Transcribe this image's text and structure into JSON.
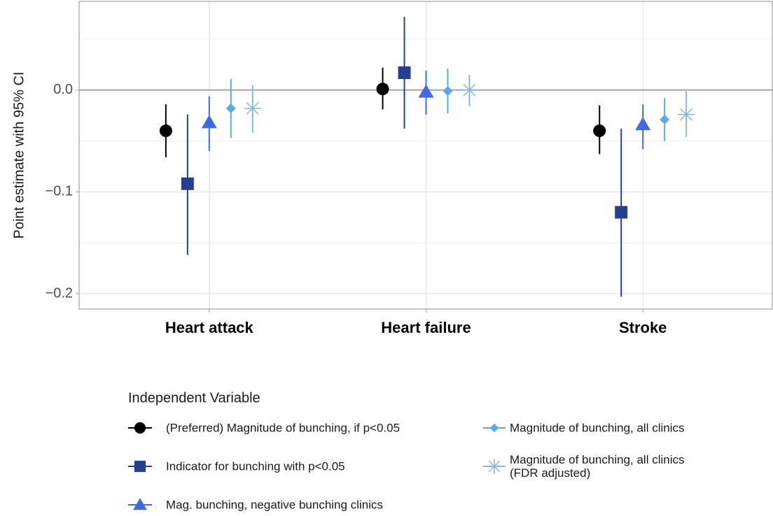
{
  "chart_data": {
    "type": "pointrange",
    "y_label": "Point estimate with 95% CI",
    "categories": [
      "Heart attack",
      "Heart failure",
      "Stroke"
    ],
    "ylim": [
      -0.215,
      0.087
    ],
    "yticks": [
      {
        "value": -0.2,
        "label": "−0.2"
      },
      {
        "value": -0.1,
        "label": "−0.1"
      },
      {
        "value": 0,
        "label": "0.0"
      }
    ],
    "yminor": [
      -0.15,
      -0.05,
      0.05
    ],
    "grid": true,
    "hline": 0,
    "legend_title": "Independent Variable",
    "series": [
      {
        "name": "(Preferred) Magnitude of bunching, if p<0.05",
        "color": "#000000",
        "shape": "circle",
        "values": [
          -0.04,
          0.001,
          -0.04
        ],
        "lower": [
          -0.066,
          -0.019,
          -0.063
        ],
        "upper": [
          -0.014,
          0.022,
          -0.015
        ]
      },
      {
        "name": "Indicator for bunching with p<0.05",
        "color": "#263f8e",
        "shape": "square",
        "values": [
          -0.092,
          0.017,
          -0.12
        ],
        "lower": [
          -0.162,
          -0.038,
          -0.203
        ],
        "upper": [
          -0.024,
          0.072,
          -0.038
        ]
      },
      {
        "name": "Mag. bunching, negative bunching clinics",
        "color": "#4169e1",
        "shape": "triangle",
        "values": [
          -0.032,
          -0.002,
          -0.034
        ],
        "lower": [
          -0.06,
          -0.024,
          -0.058
        ],
        "upper": [
          -0.006,
          0.019,
          -0.014
        ]
      },
      {
        "name": "Magnitude of bunching, all clinics",
        "color": "#5aaae8",
        "shape": "diamond",
        "values": [
          -0.018,
          -0.001,
          -0.029
        ],
        "lower": [
          -0.047,
          -0.023,
          -0.05
        ],
        "upper": [
          0.011,
          0.021,
          -0.008
        ]
      },
      {
        "name": "Magnitude of bunching, all clinics\n(FDR adjusted)",
        "color": "#8db7d6",
        "shape": "asterisk",
        "values": [
          -0.018,
          0.0,
          -0.024
        ],
        "lower": [
          -0.042,
          -0.016,
          -0.046
        ],
        "upper": [
          0.005,
          0.015,
          -0.001
        ]
      }
    ]
  }
}
